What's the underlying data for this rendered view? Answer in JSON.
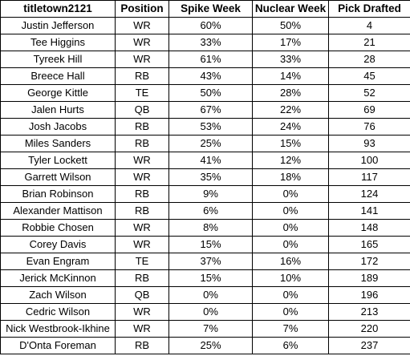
{
  "table": {
    "headers": [
      "titletown2121",
      "Position",
      "Spike Week",
      "Nuclear Week",
      "Pick Drafted"
    ],
    "rows": [
      [
        "Justin Jefferson",
        "WR",
        "60%",
        "50%",
        "4"
      ],
      [
        "Tee Higgins",
        "WR",
        "33%",
        "17%",
        "21"
      ],
      [
        "Tyreek Hill",
        "WR",
        "61%",
        "33%",
        "28"
      ],
      [
        "Breece Hall",
        "RB",
        "43%",
        "14%",
        "45"
      ],
      [
        "George Kittle",
        "TE",
        "50%",
        "28%",
        "52"
      ],
      [
        "Jalen Hurts",
        "QB",
        "67%",
        "22%",
        "69"
      ],
      [
        "Josh Jacobs",
        "RB",
        "53%",
        "24%",
        "76"
      ],
      [
        "Miles Sanders",
        "RB",
        "25%",
        "15%",
        "93"
      ],
      [
        "Tyler Lockett",
        "WR",
        "41%",
        "12%",
        "100"
      ],
      [
        "Garrett Wilson",
        "WR",
        "35%",
        "18%",
        "117"
      ],
      [
        "Brian Robinson",
        "RB",
        "9%",
        "0%",
        "124"
      ],
      [
        "Alexander Mattison",
        "RB",
        "6%",
        "0%",
        "141"
      ],
      [
        "Robbie Chosen",
        "WR",
        "8%",
        "0%",
        "148"
      ],
      [
        "Corey Davis",
        "WR",
        "15%",
        "0%",
        "165"
      ],
      [
        "Evan Engram",
        "TE",
        "37%",
        "16%",
        "172"
      ],
      [
        "Jerick McKinnon",
        "RB",
        "15%",
        "10%",
        "189"
      ],
      [
        "Zach Wilson",
        "QB",
        "0%",
        "0%",
        "196"
      ],
      [
        "Cedric Wilson",
        "WR",
        "0%",
        "0%",
        "213"
      ],
      [
        "Nick Westbrook-Ikhine",
        "WR",
        "7%",
        "7%",
        "220"
      ],
      [
        "D'Onta Foreman",
        "RB",
        "25%",
        "6%",
        "237"
      ]
    ]
  }
}
